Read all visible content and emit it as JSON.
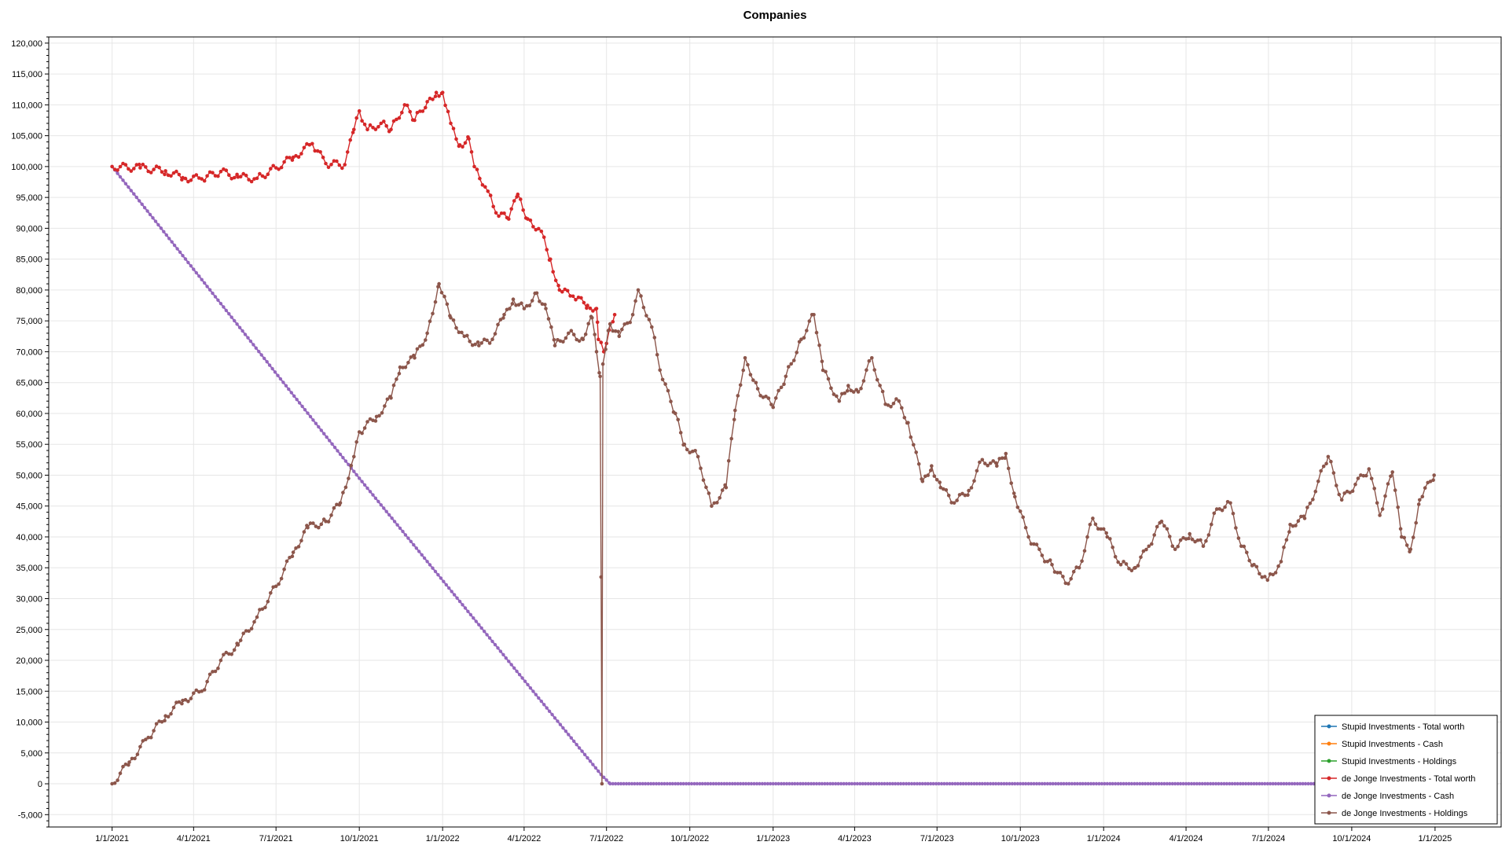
{
  "chart_data": {
    "type": "line",
    "title": "Companies",
    "xlabel": "",
    "ylabel": "",
    "x_axis": "date",
    "xlim": [
      "2020-10-23",
      "2025-03-15"
    ],
    "ylim": [
      -7000,
      121000
    ],
    "y_ticks": [
      -5000,
      0,
      5000,
      10000,
      15000,
      20000,
      25000,
      30000,
      35000,
      40000,
      45000,
      50000,
      55000,
      60000,
      65000,
      70000,
      75000,
      80000,
      85000,
      90000,
      95000,
      100000,
      105000,
      110000,
      115000,
      120000
    ],
    "y_tick_labels": [
      "-5,000",
      "0",
      "5,000",
      "10,000",
      "15,000",
      "20,000",
      "25,000",
      "30,000",
      "35,000",
      "40,000",
      "45,000",
      "50,000",
      "55,000",
      "60,000",
      "65,000",
      "70,000",
      "75,000",
      "80,000",
      "85,000",
      "90,000",
      "95,000",
      "100,000",
      "105,000",
      "110,000",
      "115,000",
      "120,000"
    ],
    "x_ticks": [
      "2021-01-01",
      "2021-04-01",
      "2021-07-01",
      "2021-10-01",
      "2022-01-01",
      "2022-04-01",
      "2022-07-01",
      "2022-10-01",
      "2023-01-01",
      "2023-04-01",
      "2023-07-01",
      "2023-10-01",
      "2024-01-01",
      "2024-04-01",
      "2024-07-01",
      "2024-10-01",
      "2025-01-01"
    ],
    "x_tick_labels": [
      "1/1/2021",
      "4/1/2021",
      "7/1/2021",
      "10/1/2021",
      "1/1/2022",
      "4/1/2022",
      "7/1/2022",
      "10/1/2022",
      "1/1/2023",
      "4/1/2023",
      "7/1/2023",
      "10/1/2023",
      "1/1/2024",
      "4/1/2024",
      "7/1/2024",
      "10/1/2024",
      "1/1/2025"
    ],
    "grid": true,
    "legend_position": "bottom-right",
    "series": [
      {
        "name": "Stupid Investments - Total worth",
        "color": "#1f77b4",
        "points": []
      },
      {
        "name": "Stupid Investments - Cash",
        "color": "#ff7f0e",
        "points": []
      },
      {
        "name": "Stupid Investments - Holdings",
        "color": "#2ca02c",
        "points": []
      },
      {
        "name": "de Jonge Investments - Total worth",
        "color": "#d62728",
        "points": [
          [
            "2021-01-01",
            100000
          ],
          [
            "2021-02-01",
            99800
          ],
          [
            "2021-03-01",
            99300
          ],
          [
            "2021-03-20",
            98200
          ],
          [
            "2021-04-10",
            98000
          ],
          [
            "2021-05-01",
            99200
          ],
          [
            "2021-05-20",
            98300
          ],
          [
            "2021-06-10",
            98100
          ],
          [
            "2021-07-01",
            99800
          ],
          [
            "2021-07-20",
            101500
          ],
          [
            "2021-08-10",
            103700
          ],
          [
            "2021-08-25",
            100500
          ],
          [
            "2021-09-15",
            100300
          ],
          [
            "2021-09-25",
            106000
          ],
          [
            "2021-10-01",
            109000
          ],
          [
            "2021-10-10",
            106000
          ],
          [
            "2021-10-25",
            107000
          ],
          [
            "2021-11-05",
            106000
          ],
          [
            "2021-11-20",
            110000
          ],
          [
            "2021-12-01",
            107500
          ],
          [
            "2021-12-15",
            110500
          ],
          [
            "2021-12-25",
            112000
          ],
          [
            "2022-01-01",
            112000
          ],
          [
            "2022-01-10",
            107000
          ],
          [
            "2022-01-20",
            103500
          ],
          [
            "2022-01-30",
            104500
          ],
          [
            "2022-02-05",
            100000
          ],
          [
            "2022-02-20",
            96000
          ],
          [
            "2022-03-01",
            92500
          ],
          [
            "2022-03-15",
            91500
          ],
          [
            "2022-03-25",
            95500
          ],
          [
            "2022-04-05",
            91500
          ],
          [
            "2022-04-20",
            89500
          ],
          [
            "2022-04-30",
            85000
          ],
          [
            "2022-05-10",
            80000
          ],
          [
            "2022-05-25",
            79000
          ],
          [
            "2022-06-10",
            77500
          ],
          [
            "2022-06-20",
            77000
          ],
          [
            "2022-06-22",
            72000
          ],
          [
            "2022-06-28",
            70000
          ],
          [
            "2022-07-05",
            74500
          ],
          [
            "2022-07-10",
            76000
          ]
        ]
      },
      {
        "name": "de Jonge Investments - Cash",
        "color": "#9467bd",
        "points": [
          [
            "2021-01-01",
            100000
          ],
          [
            "2021-10-01",
            49500
          ],
          [
            "2022-06-25",
            1500
          ],
          [
            "2022-07-05",
            0
          ],
          [
            "2024-12-31",
            0
          ]
        ]
      },
      {
        "name": "de Jonge Investments - Holdings",
        "color": "#8c564b",
        "points": [
          [
            "2021-01-01",
            0
          ],
          [
            "2021-01-20",
            3500
          ],
          [
            "2021-02-10",
            7500
          ],
          [
            "2021-03-01",
            11000
          ],
          [
            "2021-03-20",
            13500
          ],
          [
            "2021-04-10",
            15000
          ],
          [
            "2021-05-01",
            20000
          ],
          [
            "2021-05-20",
            22500
          ],
          [
            "2021-06-10",
            27000
          ],
          [
            "2021-07-01",
            32000
          ],
          [
            "2021-07-20",
            37500
          ],
          [
            "2021-08-05",
            41500
          ],
          [
            "2021-08-25",
            42500
          ],
          [
            "2021-09-10",
            45500
          ],
          [
            "2021-09-25",
            53000
          ],
          [
            "2021-10-01",
            57000
          ],
          [
            "2021-10-20",
            59500
          ],
          [
            "2021-11-05",
            62500
          ],
          [
            "2021-11-15",
            67500
          ],
          [
            "2021-12-01",
            69000
          ],
          [
            "2021-12-15",
            73000
          ],
          [
            "2021-12-28",
            81000
          ],
          [
            "2022-01-10",
            75500
          ],
          [
            "2022-01-25",
            72500
          ],
          [
            "2022-02-10",
            71000
          ],
          [
            "2022-02-25",
            72000
          ],
          [
            "2022-03-10",
            76000
          ],
          [
            "2022-03-20",
            78500
          ],
          [
            "2022-04-01",
            77000
          ],
          [
            "2022-04-15",
            79500
          ],
          [
            "2022-04-25",
            77000
          ],
          [
            "2022-05-05",
            71000
          ],
          [
            "2022-05-20",
            73000
          ],
          [
            "2022-06-05",
            72000
          ],
          [
            "2022-06-15",
            75500
          ],
          [
            "2022-06-20",
            70000
          ],
          [
            "2022-06-24",
            66000
          ],
          [
            "2022-06-26",
            0
          ],
          [
            "2022-06-27",
            68000
          ],
          [
            "2022-07-05",
            74500
          ],
          [
            "2022-07-15",
            72500
          ],
          [
            "2022-07-30",
            76000
          ],
          [
            "2022-08-05",
            80000
          ],
          [
            "2022-08-20",
            74000
          ],
          [
            "2022-09-01",
            65500
          ],
          [
            "2022-09-15",
            60000
          ],
          [
            "2022-09-25",
            55000
          ],
          [
            "2022-10-10",
            53000
          ],
          [
            "2022-10-25",
            45000
          ],
          [
            "2022-11-10",
            48000
          ],
          [
            "2022-11-20",
            60500
          ],
          [
            "2022-12-01",
            69000
          ],
          [
            "2022-12-15",
            64000
          ],
          [
            "2023-01-01",
            61000
          ],
          [
            "2023-01-15",
            66000
          ],
          [
            "2023-02-01",
            72000
          ],
          [
            "2023-02-15",
            76000
          ],
          [
            "2023-02-25",
            67000
          ],
          [
            "2023-03-15",
            62000
          ],
          [
            "2023-03-25",
            64500
          ],
          [
            "2023-04-05",
            63500
          ],
          [
            "2023-04-20",
            69000
          ],
          [
            "2023-05-05",
            61500
          ],
          [
            "2023-05-20",
            62000
          ],
          [
            "2023-05-30",
            58500
          ],
          [
            "2023-06-15",
            49000
          ],
          [
            "2023-06-25",
            51500
          ],
          [
            "2023-07-05",
            48000
          ],
          [
            "2023-07-20",
            45500
          ],
          [
            "2023-08-05",
            47500
          ],
          [
            "2023-08-20",
            52500
          ],
          [
            "2023-09-05",
            51500
          ],
          [
            "2023-09-15",
            53500
          ],
          [
            "2023-09-25",
            46500
          ],
          [
            "2023-10-10",
            40000
          ],
          [
            "2023-10-25",
            37000
          ],
          [
            "2023-11-05",
            35500
          ],
          [
            "2023-11-20",
            32500
          ],
          [
            "2023-12-05",
            35000
          ],
          [
            "2023-12-20",
            43000
          ],
          [
            "2024-01-05",
            40000
          ],
          [
            "2024-01-20",
            35500
          ],
          [
            "2024-02-05",
            35000
          ],
          [
            "2024-02-20",
            38500
          ],
          [
            "2024-03-05",
            42500
          ],
          [
            "2024-03-20",
            38000
          ],
          [
            "2024-04-05",
            40500
          ],
          [
            "2024-04-20",
            38500
          ],
          [
            "2024-05-05",
            44500
          ],
          [
            "2024-05-20",
            45500
          ],
          [
            "2024-06-01",
            38500
          ],
          [
            "2024-06-15",
            35500
          ],
          [
            "2024-06-30",
            33000
          ],
          [
            "2024-07-15",
            36000
          ],
          [
            "2024-07-25",
            42000
          ],
          [
            "2024-08-10",
            43000
          ],
          [
            "2024-08-25",
            49000
          ],
          [
            "2024-09-05",
            53000
          ],
          [
            "2024-09-20",
            46000
          ],
          [
            "2024-10-05",
            48500
          ],
          [
            "2024-10-20",
            51000
          ],
          [
            "2024-11-01",
            43500
          ],
          [
            "2024-11-15",
            50500
          ],
          [
            "2024-11-25",
            40000
          ],
          [
            "2024-12-05",
            38000
          ],
          [
            "2024-12-15",
            46000
          ],
          [
            "2024-12-31",
            50000
          ]
        ]
      }
    ]
  }
}
